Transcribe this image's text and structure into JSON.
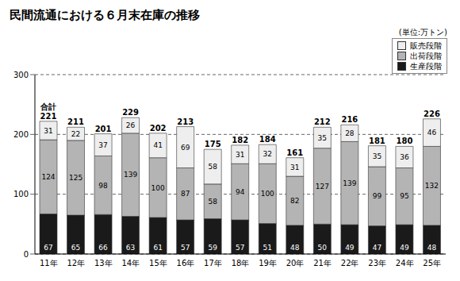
{
  "chart_data": {
    "type": "bar",
    "title": "民間流通における６月末在庫の推移",
    "unit": "(単位:万トン)",
    "categories": [
      "11年",
      "12年",
      "13年",
      "14年",
      "15年",
      "16年",
      "17年",
      "18年",
      "19年",
      "20年",
      "21年",
      "22年",
      "23年",
      "24年",
      "25年"
    ],
    "series": [
      {
        "name": "生産段階",
        "color": "#1a1a1a",
        "values": [
          67,
          65,
          66,
          63,
          61,
          57,
          59,
          57,
          51,
          48,
          50,
          49,
          47,
          49,
          48
        ]
      },
      {
        "name": "出荷段階",
        "color": "#b4b4b4",
        "values": [
          124,
          125,
          98,
          139,
          100,
          87,
          58,
          94,
          100,
          82,
          127,
          139,
          99,
          95,
          132
        ]
      },
      {
        "name": "販売段階",
        "color": "#eeeeee",
        "values": [
          31,
          22,
          37,
          26,
          41,
          69,
          58,
          31,
          32,
          31,
          35,
          28,
          35,
          36,
          46
        ]
      }
    ],
    "totals_label": "合計",
    "totals": [
      221,
      211,
      201,
      229,
      202,
      213,
      175,
      182,
      184,
      161,
      212,
      216,
      181,
      180,
      226
    ],
    "ylim": [
      0,
      300
    ],
    "yticks": [
      0,
      100,
      200,
      300
    ],
    "stacked": true,
    "data_labels": true,
    "grid": true,
    "legend": "upper right"
  }
}
